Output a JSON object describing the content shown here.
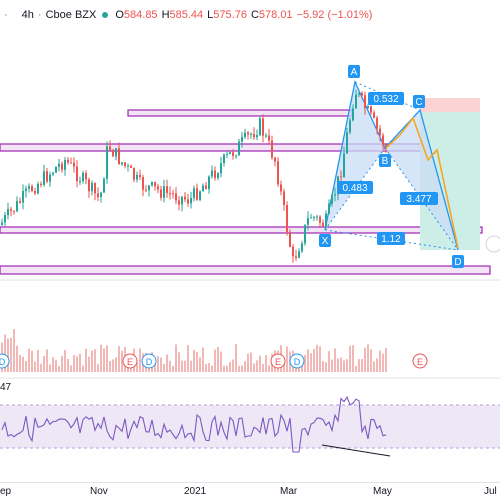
{
  "header": {
    "timeframe": "4h",
    "symbol": "Cboe BZX",
    "open_label": "O",
    "open": "584.85",
    "high_label": "H",
    "high": "585.44",
    "low_label": "L",
    "low": "575.76",
    "close_label": "C",
    "close": "578.01",
    "change": "−5.92 (−1.01%)"
  },
  "pattern": {
    "points": {
      "x": "X",
      "a": "A",
      "b": "B",
      "c": "C",
      "d": "D"
    },
    "ratios": {
      "xb": "0.483",
      "ac": "0.532",
      "bd": "3.477",
      "xd": "1.12"
    }
  },
  "events": {
    "earnings": "E",
    "dividend": "D"
  },
  "rsi": {
    "value": "47"
  },
  "xaxis": {
    "labels": [
      "ep",
      "Nov",
      "2021",
      "Mar",
      "May",
      "Jul"
    ]
  },
  "colors": {
    "up": "#26a69a",
    "down": "#ef5350",
    "pattern_fill": "#c9dcf5",
    "pattern_line": "#2196f3",
    "rect_stroke": "#9c27b0",
    "rect_fill": "#f3e5f5",
    "rsi_line": "#7e57c2",
    "rsi_band": "#ede7f6",
    "projection": "#f5a623",
    "volume": "#f2b8b5",
    "label_bg": "#2196f3"
  }
}
